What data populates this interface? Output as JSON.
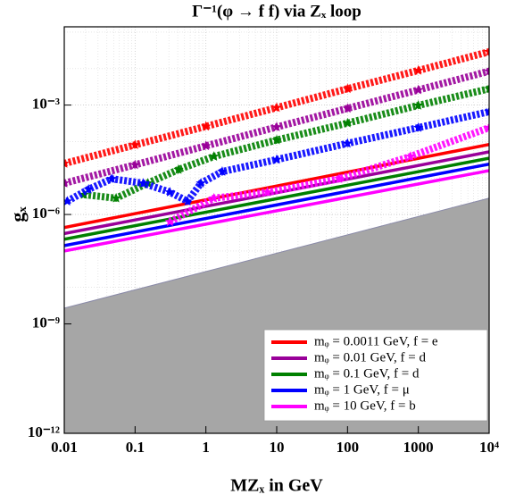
{
  "chart_data": {
    "type": "line",
    "title": "Γ⁻¹(φ → f f) via Zₓ loop",
    "x_label": "MZₓ in GeV",
    "y_label": "gₓ",
    "log_x": true,
    "log_y": true,
    "grid": true,
    "legend_position": "lower right",
    "xlim": [
      0.01,
      10000
    ],
    "ylim": [
      1e-12,
      0.14
    ],
    "xticks": [
      0.01,
      0.1,
      1,
      10,
      100,
      1000,
      {
        "value": 10000,
        "label": "10⁴"
      }
    ],
    "yticks": [
      {
        "value": 1e-12,
        "label": "10⁻¹²"
      },
      {
        "value": 1e-09,
        "label": "10⁻⁹"
      },
      {
        "value": 1e-06,
        "label": "10⁻⁶"
      },
      {
        "value": 0.001,
        "label": "10⁻³"
      }
    ],
    "excluded_region": {
      "x": [
        0.01,
        10000
      ],
      "values": [
        2.7e-09,
        2.8e-06
      ],
      "color": "#a6a6a6"
    },
    "series": [
      {
        "name": "mᵩ = 0.0011 GeV, f = e",
        "color": "#ff0000",
        "line": {
          "x": [
            0.01,
            10000
          ],
          "values": [
            4.4e-07,
            8.3e-05
          ]
        },
        "scan": {
          "x": [
            0.01,
            0.1,
            1,
            10,
            100,
            1000,
            10000
          ],
          "values": [
            2.5e-05,
            8.1e-05,
            0.00026,
            0.00085,
            0.0028,
            0.0089,
            0.029
          ]
        }
      },
      {
        "name": "mᵩ = 0.01 GeV, f = d",
        "color": "#990099",
        "line": {
          "x": [
            0.01,
            10000
          ],
          "values": [
            3e-07,
            5.2e-05
          ]
        },
        "scan": {
          "x": [
            0.01,
            0.1,
            1,
            10,
            100,
            1000,
            10000
          ],
          "values": [
            7.2e-06,
            2.3e-05,
            7.6e-05,
            0.00025,
            0.00081,
            0.0026,
            0.0085
          ]
        }
      },
      {
        "name": "mᵩ = 0.1 GeV, f = d",
        "color": "#008000",
        "line": {
          "x": [
            0.01,
            10000
          ],
          "values": [
            2.1e-07,
            3.5e-05
          ]
        },
        "scan": {
          "x": [
            0.019,
            0.054,
            0.15,
            0.41,
            1.3,
            10,
            100,
            1000,
            10000
          ],
          "values": [
            3.5e-06,
            2.8e-06,
            7.2e-06,
            1.7e-05,
            3.9e-05,
            0.00011,
            0.00032,
            0.00098,
            0.0028
          ]
        }
      },
      {
        "name": "mᵩ = 1 GeV, f = μ",
        "color": "#0000ff",
        "line": {
          "x": [
            0.01,
            10000
          ],
          "values": [
            1.4e-07,
            2.4e-05
          ]
        },
        "scan": {
          "x": [
            0.011,
            0.022,
            0.047,
            0.13,
            0.31,
            0.55,
            0.85,
            1.7,
            10,
            100,
            1000,
            10000
          ],
          "values": [
            2.3e-06,
            4.9e-06,
            9.5e-06,
            7.2e-06,
            4.1e-06,
            2.3e-06,
            7.2e-06,
            1.5e-05,
            3.2e-05,
            8.9e-05,
            0.00024,
            0.00066
          ]
        }
      },
      {
        "name": "mᵩ = 10 GeV, f = b",
        "color": "#ff00ff",
        "line": {
          "x": [
            0.01,
            10000
          ],
          "values": [
            1e-07,
            1.6e-05
          ]
        },
        "scan": {
          "x": [
            0.31,
            1.3,
            7.4,
            76,
            776,
            10000
          ],
          "values": [
            6.3e-07,
            2.8e-06,
            4.1e-06,
            9.5e-06,
            3.9e-05,
            0.00024
          ]
        }
      }
    ]
  }
}
